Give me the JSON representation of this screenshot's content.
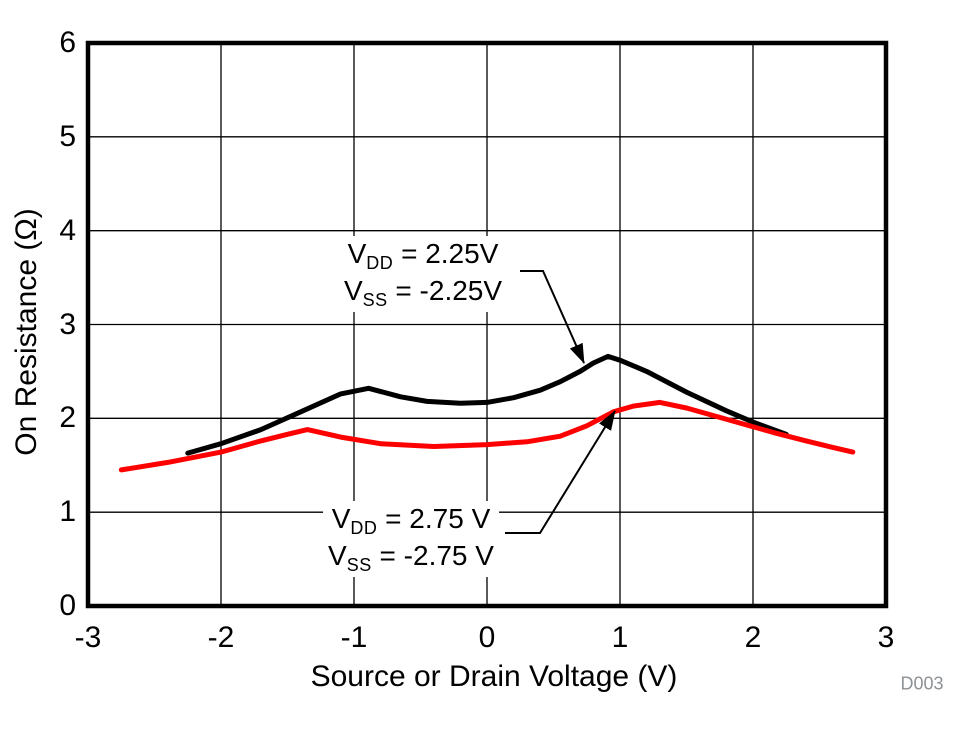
{
  "figure": {
    "watermark": "D003",
    "background_color": "#ffffff"
  },
  "chart_data": {
    "type": "line",
    "xlabel": "Source or Drain Voltage (V)",
    "ylabel": "On Resistance (Ω)",
    "xlim": [
      -3,
      3
    ],
    "ylim": [
      0,
      6
    ],
    "xticks": [
      "-3",
      "-2",
      "-1",
      "0",
      "1",
      "2",
      "3"
    ],
    "yticks": [
      "0",
      "1",
      "2",
      "3",
      "4",
      "5",
      "6"
    ],
    "grid": true,
    "legend_position": "none (inline annotations with leader arrows)",
    "series": [
      {
        "name": "VDD = 2.25V, VSS = -2.25V",
        "color": "#000000",
        "points": [
          [
            -2.25,
            1.63
          ],
          [
            -2.0,
            1.73
          ],
          [
            -1.7,
            1.88
          ],
          [
            -1.4,
            2.07
          ],
          [
            -1.1,
            2.26
          ],
          [
            -0.89,
            2.32
          ],
          [
            -0.65,
            2.23
          ],
          [
            -0.45,
            2.18
          ],
          [
            -0.2,
            2.16
          ],
          [
            0.0,
            2.17
          ],
          [
            0.2,
            2.22
          ],
          [
            0.4,
            2.3
          ],
          [
            0.55,
            2.39
          ],
          [
            0.7,
            2.5
          ],
          [
            0.8,
            2.59
          ],
          [
            0.91,
            2.66
          ],
          [
            1.0,
            2.62
          ],
          [
            1.2,
            2.5
          ],
          [
            1.5,
            2.28
          ],
          [
            1.8,
            2.08
          ],
          [
            2.0,
            1.96
          ],
          [
            2.25,
            1.83
          ]
        ]
      },
      {
        "name": "VDD = 2.75 V, VSS = -2.75 V",
        "color": "#ff0000",
        "points": [
          [
            -2.75,
            1.45
          ],
          [
            -2.4,
            1.53
          ],
          [
            -2.0,
            1.64
          ],
          [
            -1.7,
            1.76
          ],
          [
            -1.5,
            1.83
          ],
          [
            -1.35,
            1.88
          ],
          [
            -1.1,
            1.8
          ],
          [
            -0.8,
            1.73
          ],
          [
            -0.4,
            1.7
          ],
          [
            0.0,
            1.72
          ],
          [
            0.3,
            1.75
          ],
          [
            0.55,
            1.81
          ],
          [
            0.75,
            1.92
          ],
          [
            0.95,
            2.07
          ],
          [
            1.1,
            2.13
          ],
          [
            1.3,
            2.17
          ],
          [
            1.5,
            2.11
          ],
          [
            1.7,
            2.03
          ],
          [
            1.9,
            1.95
          ],
          [
            2.15,
            1.85
          ],
          [
            2.4,
            1.76
          ],
          [
            2.6,
            1.69
          ],
          [
            2.75,
            1.64
          ]
        ]
      }
    ],
    "annotations": [
      {
        "full_text": "VDD = 2.25V\nVSS = -2.25V",
        "refers_to_series": "VDD = 2.25V, VSS = -2.25V",
        "lines": [
          {
            "base": "V",
            "sub": "DD",
            "rest": " = 2.25V"
          },
          {
            "base": "V",
            "sub": "SS",
            "rest": " = -2.25V"
          }
        ]
      },
      {
        "full_text": "VDD = 2.75 V\nVSS = -2.75 V",
        "refers_to_series": "VDD = 2.75 V, VSS = -2.75 V",
        "lines": [
          {
            "base": "V",
            "sub": "DD",
            "rest": " = 2.75 V"
          },
          {
            "base": "V",
            "sub": "SS",
            "rest": " = -2.75 V"
          }
        ]
      }
    ]
  }
}
